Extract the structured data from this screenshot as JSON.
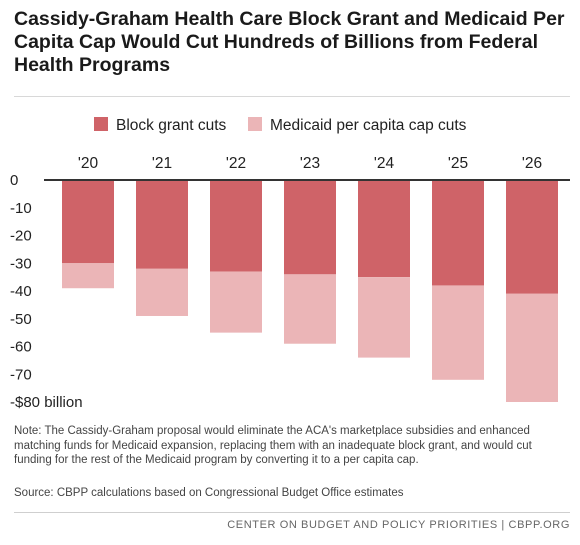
{
  "title": "Cassidy-Graham Health Care Block Grant and Medicaid Per Capita Cap Would Cut Hundreds of Billions from Federal Health Programs",
  "note": "Note: The Cassidy-Graham proposal would eliminate the ACA's marketplace subsidies and enhanced matching funds for Medicaid expansion, replacing them with an inadequate block grant, and would cut funding for the rest of the Medicaid program by converting it to a per capita cap.",
  "source": "Source: CBPP calculations based on Congressional Budget Office estimates",
  "footer": "CENTER ON BUDGET AND POLICY PRIORITIES | CBPP.ORG",
  "colors": {
    "block_grant": "#cf6368",
    "per_capita": "#ebb5b7",
    "axis": "#333333"
  },
  "chart_data": {
    "type": "bar",
    "stacked": true,
    "categories": [
      "'20",
      "'21",
      "'22",
      "'23",
      "'24",
      "'25",
      "'26"
    ],
    "series": [
      {
        "name": "Block grant cuts",
        "values": [
          -30,
          -32,
          -33,
          -34,
          -35,
          -38,
          -41
        ]
      },
      {
        "name": "Medicaid per capita cap cuts",
        "values": [
          -9,
          -17,
          -22,
          -25,
          -29,
          -34,
          -39
        ]
      }
    ],
    "ylim": [
      -80,
      0
    ],
    "yticks": [
      0,
      -10,
      -20,
      -30,
      -40,
      -50,
      -60,
      -70,
      -80
    ],
    "ytick_labels": [
      "0",
      "-10",
      "-20",
      "-30",
      "-40",
      "-50",
      "-60",
      "-70",
      "-$80 billion"
    ],
    "legend": "top",
    "xaxis_position": "top",
    "grid": false
  }
}
